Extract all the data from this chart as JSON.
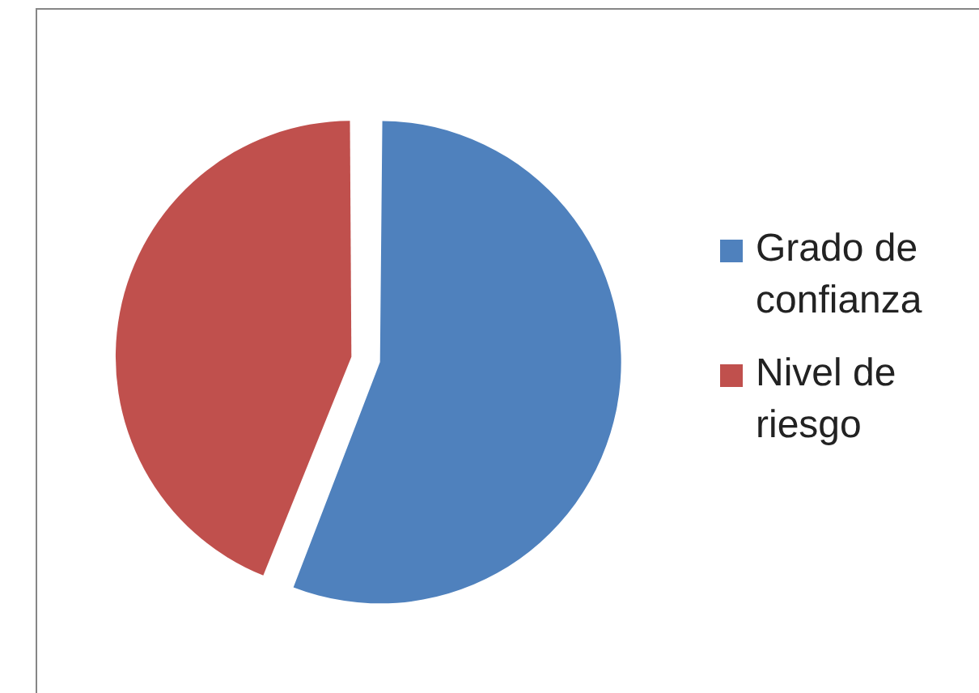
{
  "chart_data": {
    "type": "pie",
    "categories": [
      "Grado de confianza",
      "Nivel de riesgo"
    ],
    "values": [
      56,
      44
    ],
    "colors": [
      "#4f81bd",
      "#c0504d"
    ],
    "legend": "right"
  }
}
